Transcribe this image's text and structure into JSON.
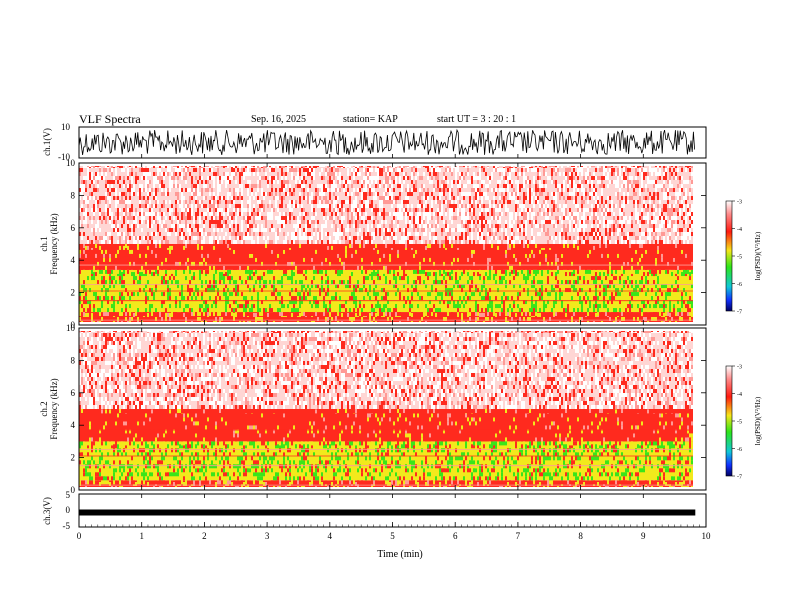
{
  "header": {
    "title": "VLF Spectra",
    "date": "Sep. 16, 2025",
    "station": "station= KAP",
    "start": "start  UT  =   3  : 20 : 1"
  },
  "chart_data": [
    {
      "type": "line",
      "id": "ch1-waveform",
      "ylabel": "ch.1(V)",
      "ylim": [
        -10,
        10
      ],
      "ytick_labels": [
        "10",
        "-10"
      ],
      "xlim": [
        0,
        10
      ],
      "description_only_visible": true
    },
    {
      "type": "heatmap",
      "id": "ch1-spectrogram",
      "ylabel_line1": "ch.1",
      "ylabel_line2": "Frequency  (kHz)",
      "ylim": [
        0,
        10
      ],
      "yticks": [
        0,
        2,
        4,
        6,
        8,
        10
      ],
      "ytick_labels": [
        "0",
        "2",
        "4",
        "6",
        "8",
        "10"
      ],
      "xlim": [
        0,
        10
      ],
      "data_extent_min": 9.83,
      "bands_khz": [
        {
          "from": 0.0,
          "to": 0.8,
          "level": "red-yellow"
        },
        {
          "from": 0.8,
          "to": 3.4,
          "level": "green-yellow"
        },
        {
          "from": 3.4,
          "to": 5.0,
          "level": "red"
        },
        {
          "from": 5.0,
          "to": 10.0,
          "level": "pink-white"
        }
      ],
      "colorbar": {
        "range": [
          -7,
          -3
        ],
        "tick_labels": [
          "-3",
          "-4",
          "-5",
          "-6",
          "-7"
        ],
        "label": "log(PSD)(V²/Hz)"
      }
    },
    {
      "type": "heatmap",
      "id": "ch2-spectrogram",
      "ylabel_line1": "ch.2",
      "ylabel_line2": "Frequency  (kHz)",
      "ylim": [
        0,
        10
      ],
      "yticks": [
        0,
        2,
        4,
        6,
        8,
        10
      ],
      "ytick_labels": [
        "0",
        "2",
        "4",
        "6",
        "8",
        "10"
      ],
      "xlim": [
        0,
        10
      ],
      "data_extent_min": 9.83,
      "bands_khz": [
        {
          "from": 0.0,
          "to": 0.6,
          "level": "red-yellow"
        },
        {
          "from": 0.6,
          "to": 3.0,
          "level": "green-yellow"
        },
        {
          "from": 3.0,
          "to": 5.0,
          "level": "red"
        },
        {
          "from": 5.0,
          "to": 10.0,
          "level": "pink-white"
        }
      ],
      "colorbar": {
        "range": [
          -7,
          -3
        ],
        "tick_labels": [
          "-3",
          "-4",
          "-5",
          "-6",
          "-7"
        ],
        "label": "log(PSD)(V²/Hz)"
      }
    },
    {
      "type": "line",
      "id": "ch3-waveform",
      "ylabel": "ch.3(V)",
      "ylim": [
        -5,
        5
      ],
      "ytick_labels": [
        "5",
        "0",
        "-5"
      ],
      "xlim": [
        0,
        10
      ],
      "xticks": [
        0,
        1,
        2,
        3,
        4,
        5,
        6,
        7,
        8,
        9,
        10
      ],
      "xtick_labels": [
        "0",
        "1",
        "2",
        "3",
        "4",
        "5",
        "6",
        "7",
        "8",
        "9",
        "10"
      ],
      "xlabel": "Time  (min)",
      "level_v": -0.6
    }
  ],
  "colors": {
    "red": "#ff2a1e",
    "pink": "#ff9a96",
    "yellow": "#f2e91c",
    "green": "#3ae51a",
    "white": "#ffffff",
    "black": "#000000"
  }
}
